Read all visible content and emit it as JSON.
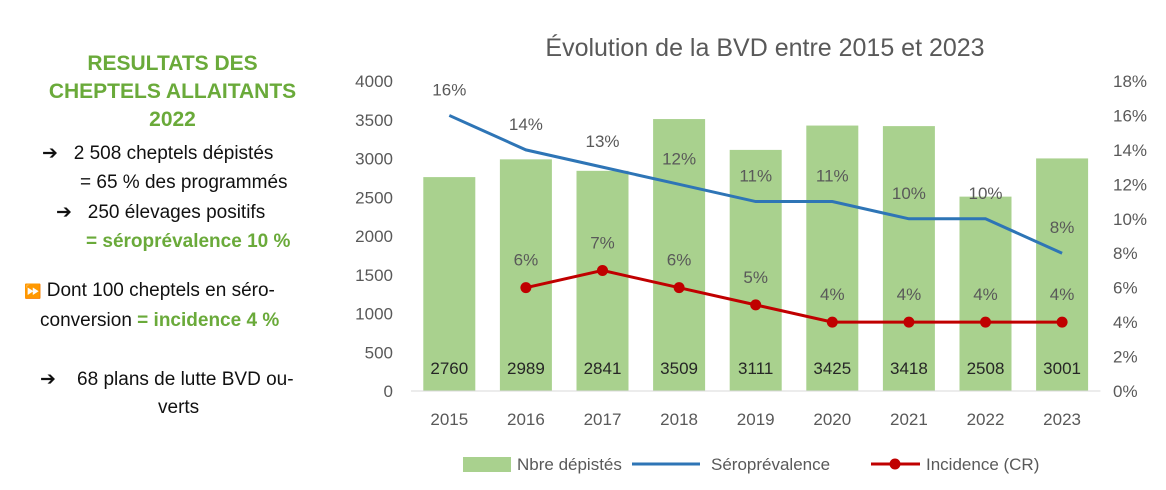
{
  "summary": {
    "title_lines": [
      "RESULTATS DES",
      "CHEPTELS ALLAITANTS",
      "2022"
    ],
    "arrow_right": "➔",
    "arrow_double": "⏩",
    "line1": "2 508 cheptels dépistés",
    "line2": "= 65 % des programmés",
    "line3": "250 élevages positifs",
    "line4": "= séroprévalence 10 %",
    "line5a": "Dont 100 cheptels en séro-",
    "line5b": "conversion ",
    "line5b_green": "= incidence 4 %",
    "line6a": "68 plans de lutte BVD ou-",
    "line6b": "verts"
  },
  "colors": {
    "bar": "#a9d18e",
    "line_sero": "#2e75b6",
    "line_incidence": "#c00000",
    "accent_green": "#6aaa3a"
  },
  "chart_data": {
    "type": "bar+line",
    "title": "Évolution de la BVD entre 2015 et 2023",
    "categories": [
      "2015",
      "2016",
      "2017",
      "2018",
      "2019",
      "2020",
      "2021",
      "2022",
      "2023"
    ],
    "y_left": {
      "lim": [
        0,
        4000
      ],
      "ticks": [
        "0",
        "500",
        "1000",
        "1500",
        "2000",
        "2500",
        "3000",
        "3500",
        "4000"
      ]
    },
    "y_right": {
      "lim": [
        0,
        18
      ],
      "ticks": [
        "0%",
        "2%",
        "4%",
        "6%",
        "8%",
        "10%",
        "12%",
        "14%",
        "16%",
        "18%"
      ]
    },
    "series": [
      {
        "name": "Nbre dépistés",
        "type": "bar",
        "axis": "left",
        "values": [
          2760,
          2989,
          2841,
          3509,
          3111,
          3425,
          3418,
          2508,
          3001
        ],
        "labels": [
          "2760",
          "2989",
          "2841",
          "3509",
          "3111",
          "3425",
          "3418",
          "2508",
          "3001"
        ]
      },
      {
        "name": "Séroprévalence",
        "type": "line",
        "axis": "right",
        "values": [
          16,
          14,
          13,
          12,
          11,
          11,
          10,
          10,
          8
        ],
        "labels": [
          "16%",
          "14%",
          "13%",
          "12%",
          "11%",
          "11%",
          "10%",
          "10%",
          "8%"
        ]
      },
      {
        "name": "Incidence (CR)",
        "type": "line",
        "axis": "right",
        "markers": true,
        "values": [
          null,
          6,
          7,
          6,
          5,
          4,
          4,
          4,
          4
        ],
        "labels": [
          "",
          "6%",
          "7%",
          "6%",
          "5%",
          "4%",
          "4%",
          "4%",
          "4%"
        ]
      }
    ],
    "legend_position": "bottom",
    "grid": false
  }
}
